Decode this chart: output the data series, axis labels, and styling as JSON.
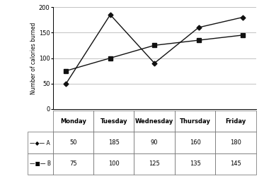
{
  "days": [
    "Monday",
    "Tuesday",
    "Wednesday",
    "Thursday",
    "Friday"
  ],
  "A_values": [
    50,
    185,
    90,
    160,
    180
  ],
  "B_values": [
    75,
    100,
    125,
    135,
    145
  ],
  "ylabel": "Number of calories burned",
  "ylim": [
    0,
    200
  ],
  "yticks": [
    0,
    50,
    100,
    150,
    200
  ],
  "line_color": "#111111",
  "row_A_label": "A",
  "row_B_label": "B",
  "fig_width": 3.73,
  "fig_height": 2.5,
  "dpi": 100
}
